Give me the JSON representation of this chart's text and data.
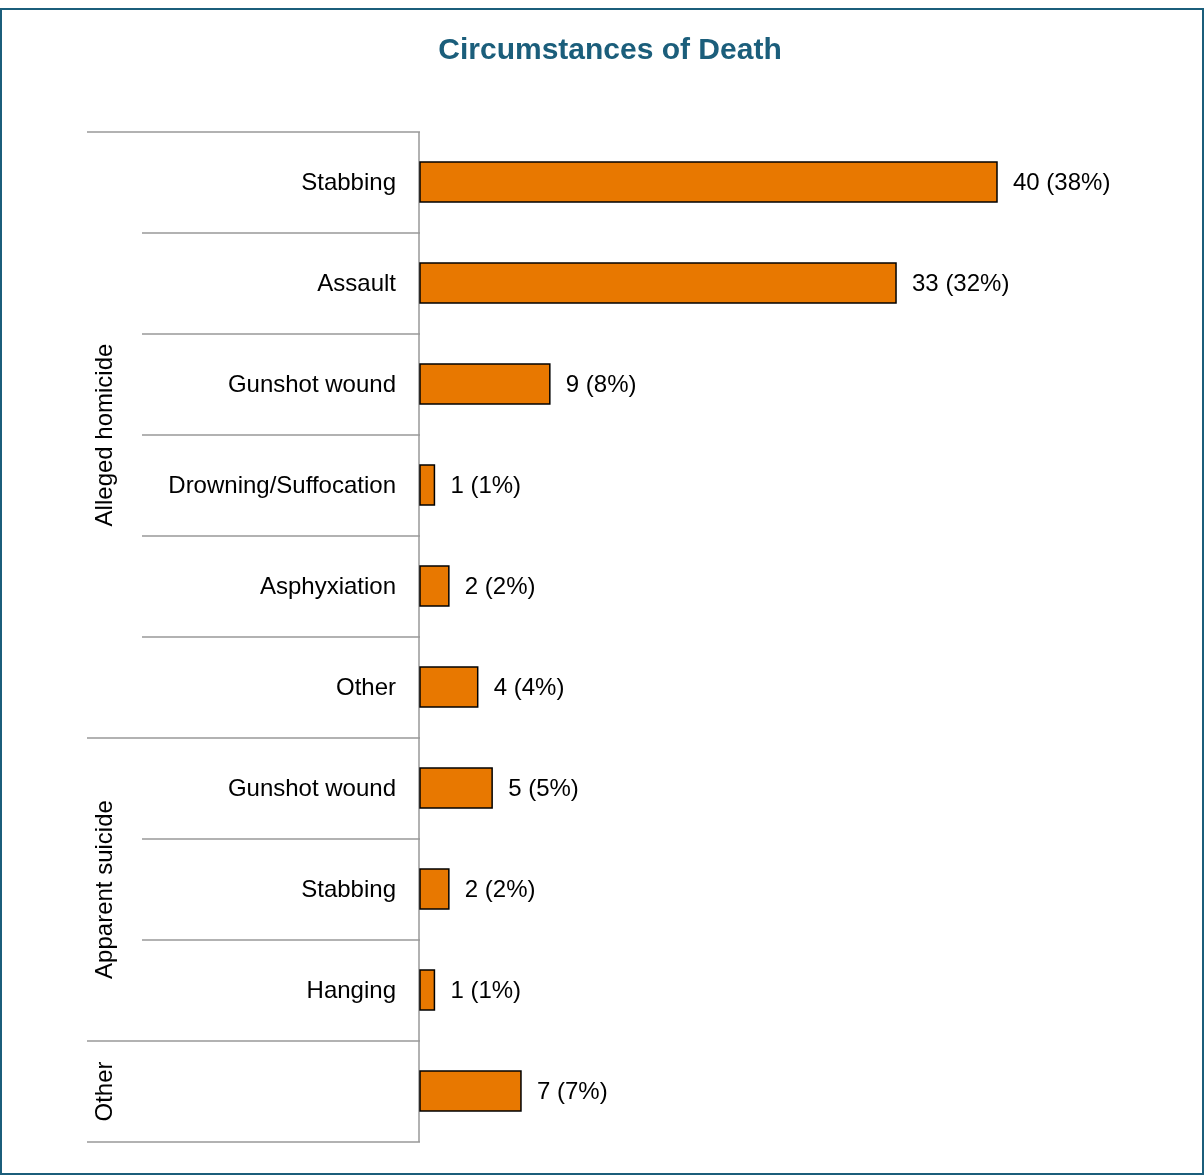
{
  "chart_data": {
    "type": "bar",
    "orientation": "horizontal",
    "title": "Circumstances of Death",
    "categories": [
      "Stabbing",
      "Assault",
      "Gunshot wound",
      "Drowning/Suffocation",
      "Asphyxiation",
      "Other",
      "Gunshot wound",
      "Stabbing",
      "Hanging",
      null
    ],
    "values": [
      40,
      33,
      9,
      1,
      2,
      4,
      5,
      2,
      1,
      7
    ],
    "value_labels": [
      "40 (38%)",
      "33 (32%)",
      "9 (8%)",
      "1 (1%)",
      "2 (2%)",
      "4 (4%)",
      "5 (5%)",
      "2 (2%)",
      "1 (1%)",
      "7 (7%)"
    ],
    "color": "#e87800",
    "annotations": [
      "Alleged homicide",
      "Apparent suicide",
      "Other"
    ]
  }
}
